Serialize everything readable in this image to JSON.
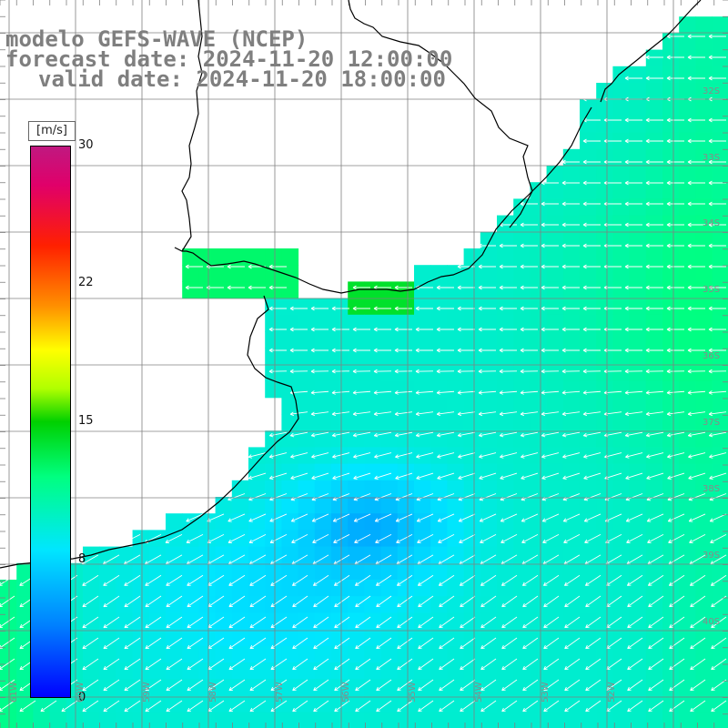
{
  "titles": {
    "line1": "modelo GEFS-WAVE (NCEP)",
    "line2": "forecast date: 2024-11-20 12:00:00",
    "line3": "valid date: 2024-11-20 18:00:00"
  },
  "colorbar": {
    "unit": "[m/s]",
    "min": 0,
    "max": 30,
    "ticks": [
      "30",
      "22",
      "15",
      "8",
      "0"
    ],
    "tick_values": [
      30,
      22.5,
      15,
      7.5,
      0
    ],
    "colors": [
      "#0000ff",
      "#0080ff",
      "#00e6ff",
      "#00ff80",
      "#00d000",
      "#b0ff00",
      "#ffff00",
      "#ff9000",
      "#ff2000",
      "#c01880"
    ]
  },
  "map": {
    "lat_labels": [
      "32S",
      "33S",
      "34S",
      "35S",
      "36S",
      "37S",
      "38S",
      "39S",
      "40S"
    ],
    "lon_labels": [
      "61W",
      "60W",
      "59W",
      "58W",
      "57W",
      "56W",
      "55W",
      "54W",
      "53W",
      "52W"
    ],
    "land_color": "#ffffff",
    "grid_color": "#808080",
    "arrow_color": "#ffffff",
    "wind_direction": "from east-northeast"
  }
}
